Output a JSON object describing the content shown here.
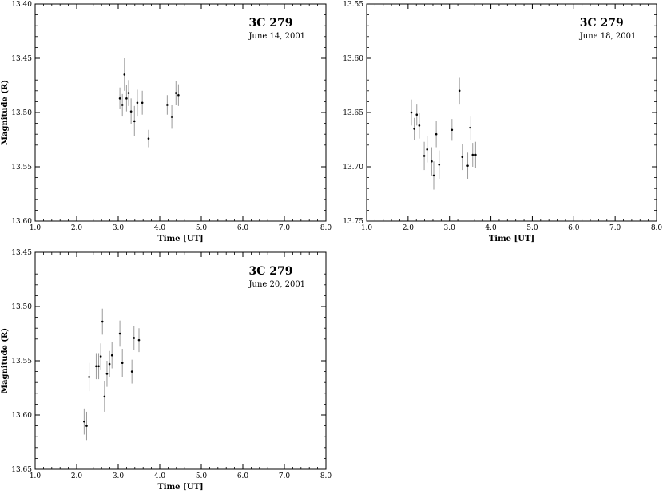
{
  "chart_data": [
    {
      "type": "scatter",
      "title": "3C 279",
      "subtitle": "June 14, 2001",
      "xlabel": "Time [UT]",
      "ylabel": "Magnitude (R)",
      "xlim": [
        1.0,
        8.0
      ],
      "ylim": [
        13.6,
        13.4
      ],
      "y_inverted": true,
      "xticks": [
        "1.0",
        "2.0",
        "3.0",
        "4.0",
        "5.0",
        "6.0",
        "7.0",
        "8.0"
      ],
      "yticks": [
        "13.40",
        "13.45",
        "13.50",
        "13.55",
        "13.60"
      ],
      "grid": false,
      "error_bars": true,
      "series": [
        {
          "points": [
            {
              "x": 3.04,
              "y": 13.487,
              "err": 0.01
            },
            {
              "x": 3.1,
              "y": 13.493,
              "err": 0.01
            },
            {
              "x": 3.15,
              "y": 13.465,
              "err": 0.015
            },
            {
              "x": 3.2,
              "y": 13.487,
              "err": 0.012
            },
            {
              "x": 3.25,
              "y": 13.482,
              "err": 0.012
            },
            {
              "x": 3.31,
              "y": 13.499,
              "err": 0.012
            },
            {
              "x": 3.39,
              "y": 13.508,
              "err": 0.014
            },
            {
              "x": 3.46,
              "y": 13.491,
              "err": 0.012
            },
            {
              "x": 3.58,
              "y": 13.491,
              "err": 0.011
            },
            {
              "x": 3.73,
              "y": 13.524,
              "err": 0.008
            },
            {
              "x": 4.18,
              "y": 13.493,
              "err": 0.009
            },
            {
              "x": 4.29,
              "y": 13.504,
              "err": 0.011
            },
            {
              "x": 4.39,
              "y": 13.482,
              "err": 0.011
            },
            {
              "x": 4.45,
              "y": 13.484,
              "err": 0.01
            }
          ]
        }
      ]
    },
    {
      "type": "scatter",
      "title": "3C 279",
      "subtitle": "June 18, 2001",
      "xlabel": "Time [UT]",
      "ylabel": "",
      "xlim": [
        1.0,
        8.0
      ],
      "ylim": [
        13.75,
        13.55
      ],
      "y_inverted": true,
      "xticks": [
        "1.0",
        "2.0",
        "3.0",
        "4.0",
        "5.0",
        "6.0",
        "7.0",
        "8.0"
      ],
      "yticks": [
        "13.55",
        "13.60",
        "13.65",
        "13.70",
        "13.75"
      ],
      "grid": false,
      "error_bars": true,
      "series": [
        {
          "points": [
            {
              "x": 2.08,
              "y": 13.65,
              "err": 0.012
            },
            {
              "x": 2.15,
              "y": 13.665,
              "err": 0.01
            },
            {
              "x": 2.21,
              "y": 13.652,
              "err": 0.01
            },
            {
              "x": 2.27,
              "y": 13.662,
              "err": 0.012
            },
            {
              "x": 2.39,
              "y": 13.69,
              "err": 0.013
            },
            {
              "x": 2.46,
              "y": 13.684,
              "err": 0.012
            },
            {
              "x": 2.57,
              "y": 13.695,
              "err": 0.013
            },
            {
              "x": 2.62,
              "y": 13.708,
              "err": 0.013
            },
            {
              "x": 2.68,
              "y": 13.67,
              "err": 0.012
            },
            {
              "x": 2.75,
              "y": 13.698,
              "err": 0.013
            },
            {
              "x": 3.06,
              "y": 13.666,
              "err": 0.01
            },
            {
              "x": 3.24,
              "y": 13.63,
              "err": 0.012
            },
            {
              "x": 3.31,
              "y": 13.691,
              "err": 0.012
            },
            {
              "x": 3.44,
              "y": 13.699,
              "err": 0.012
            },
            {
              "x": 3.5,
              "y": 13.664,
              "err": 0.011
            },
            {
              "x": 3.56,
              "y": 13.689,
              "err": 0.011
            },
            {
              "x": 3.63,
              "y": 13.689,
              "err": 0.012
            }
          ]
        }
      ]
    },
    {
      "type": "scatter",
      "title": "3C 279",
      "subtitle": "June 20, 2001",
      "xlabel": "Time [UT]",
      "ylabel": "Magnitude (R)",
      "xlim": [
        1.0,
        8.0
      ],
      "ylim": [
        13.65,
        13.45
      ],
      "y_inverted": true,
      "xticks": [
        "1.0",
        "2.0",
        "3.0",
        "4.0",
        "5.0",
        "6.0",
        "7.0",
        "8.0"
      ],
      "yticks": [
        "13.45",
        "13.50",
        "13.55",
        "13.60",
        "13.65"
      ],
      "grid": false,
      "error_bars": true,
      "series": [
        {
          "points": [
            {
              "x": 2.18,
              "y": 13.606,
              "err": 0.012
            },
            {
              "x": 2.24,
              "y": 13.61,
              "err": 0.013
            },
            {
              "x": 2.3,
              "y": 13.565,
              "err": 0.013
            },
            {
              "x": 2.47,
              "y": 13.555,
              "err": 0.012
            },
            {
              "x": 2.53,
              "y": 13.555,
              "err": 0.012
            },
            {
              "x": 2.58,
              "y": 13.546,
              "err": 0.012
            },
            {
              "x": 2.62,
              "y": 13.514,
              "err": 0.012
            },
            {
              "x": 2.67,
              "y": 13.583,
              "err": 0.014
            },
            {
              "x": 2.73,
              "y": 13.562,
              "err": 0.012
            },
            {
              "x": 2.79,
              "y": 13.553,
              "err": 0.012
            },
            {
              "x": 2.85,
              "y": 13.545,
              "err": 0.012
            },
            {
              "x": 3.04,
              "y": 13.525,
              "err": 0.012
            },
            {
              "x": 3.1,
              "y": 13.552,
              "err": 0.013
            },
            {
              "x": 3.33,
              "y": 13.56,
              "err": 0.011
            },
            {
              "x": 3.38,
              "y": 13.529,
              "err": 0.011
            },
            {
              "x": 3.5,
              "y": 13.531,
              "err": 0.011
            }
          ]
        }
      ]
    }
  ]
}
